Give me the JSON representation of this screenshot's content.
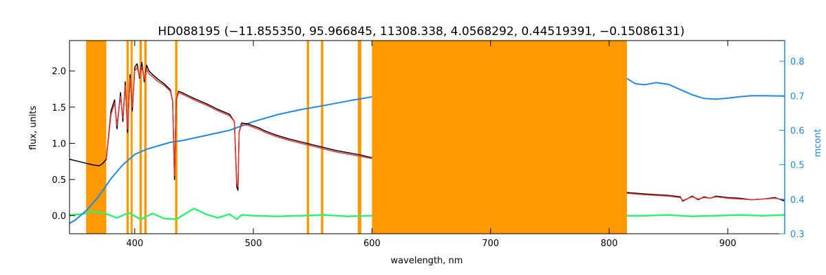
{
  "chart_data": {
    "type": "line",
    "title": "HD088195   (−11.855350, 95.966845, 11308.338, 4.0568292, 0.44519391, −0.15086131)",
    "xlabel": "wavelength, nm",
    "ylabel": "flux, units",
    "ylabel_right": "mcont",
    "xlim": [
      345,
      948
    ],
    "ylim": [
      -0.25,
      2.42
    ],
    "ylim_right": [
      0.3,
      0.86
    ],
    "x_ticks": [
      400,
      500,
      600,
      700,
      800,
      900
    ],
    "y_ticks": [
      0.0,
      0.5,
      1.0,
      1.5,
      2.0
    ],
    "y_tick_labels": [
      "0.0",
      "0.5",
      "1.0",
      "1.5",
      "2.0"
    ],
    "y_ticks_right": [
      0.3,
      0.4,
      0.5,
      0.6,
      0.7,
      0.8
    ],
    "y_tick_labels_right": [
      "0.3",
      "0.4",
      "0.5",
      "0.6",
      "0.7",
      "0.8"
    ],
    "masked_regions": [
      [
        359,
        376
      ],
      [
        393,
        395
      ],
      [
        396.5,
        398
      ],
      [
        404,
        406
      ],
      [
        408,
        410
      ],
      [
        434,
        436
      ],
      [
        545,
        547
      ],
      [
        557,
        559
      ],
      [
        588,
        591
      ],
      [
        600,
        815
      ]
    ],
    "colors": {
      "observed": "#000000",
      "model": "#e53935",
      "residual": "#33ee77",
      "continuum": "#1e88e5",
      "mask": "#ff9900",
      "fill": "#ffee00"
    },
    "series": [
      {
        "role": "observed",
        "x": [
          345,
          355,
          360,
          365,
          370,
          373,
          376,
          380,
          383,
          385,
          388,
          390,
          392,
          394,
          396,
          398,
          400,
          402,
          404,
          406,
          408,
          410,
          412,
          415,
          420,
          425,
          430,
          432,
          433.5,
          435,
          437,
          440,
          445,
          450,
          460,
          470,
          480,
          484,
          486,
          487,
          488,
          490,
          495,
          500,
          505,
          510,
          520,
          530,
          540,
          550,
          560,
          570,
          580,
          590,
          600
        ],
        "y": [
          0.78,
          0.74,
          0.72,
          0.7,
          0.69,
          0.72,
          0.78,
          1.45,
          1.6,
          1.2,
          1.7,
          1.3,
          1.85,
          1.15,
          1.95,
          1.45,
          2.05,
          2.1,
          1.9,
          2.12,
          1.85,
          2.08,
          2.0,
          1.95,
          1.88,
          1.82,
          1.74,
          1.58,
          0.5,
          1.6,
          1.72,
          1.7,
          1.66,
          1.62,
          1.55,
          1.47,
          1.4,
          1.3,
          0.4,
          0.35,
          1.15,
          1.28,
          1.27,
          1.24,
          1.21,
          1.17,
          1.11,
          1.06,
          1.02,
          0.98,
          0.94,
          0.9,
          0.87,
          0.84,
          0.8
        ]
      },
      {
        "role": "observed",
        "x": [
          815,
          830,
          850,
          860,
          862,
          870,
          875,
          880,
          885,
          890,
          900,
          910,
          920,
          930,
          940,
          948
        ],
        "y": [
          0.32,
          0.3,
          0.28,
          0.26,
          0.2,
          0.27,
          0.22,
          0.26,
          0.24,
          0.27,
          0.25,
          0.24,
          0.22,
          0.23,
          0.25,
          0.2
        ]
      },
      {
        "role": "model",
        "x": [
          376,
          380,
          383,
          385,
          388,
          390,
          392,
          394,
          396,
          398,
          400,
          402,
          404,
          406,
          408,
          410,
          412,
          415,
          420,
          425,
          430,
          432,
          433.5,
          435,
          437,
          440,
          445,
          450,
          460,
          470,
          480,
          484,
          486,
          487,
          488,
          490,
          495,
          500,
          505,
          510,
          520,
          530,
          540,
          550,
          560,
          570,
          580,
          590,
          600
        ],
        "y": [
          0.78,
          1.4,
          1.56,
          1.25,
          1.65,
          1.35,
          1.8,
          1.2,
          1.9,
          1.5,
          2.0,
          2.05,
          1.92,
          2.06,
          1.88,
          2.02,
          1.96,
          1.92,
          1.85,
          1.8,
          1.72,
          1.58,
          0.55,
          1.6,
          1.7,
          1.68,
          1.64,
          1.6,
          1.53,
          1.45,
          1.38,
          1.3,
          0.45,
          0.4,
          1.15,
          1.26,
          1.25,
          1.22,
          1.19,
          1.15,
          1.09,
          1.04,
          1.0,
          0.96,
          0.92,
          0.88,
          0.85,
          0.82,
          0.79
        ]
      },
      {
        "role": "model",
        "x": [
          815,
          830,
          850,
          860,
          862,
          870,
          875,
          880,
          885,
          890,
          900,
          910,
          920,
          930,
          940,
          948
        ],
        "y": [
          0.31,
          0.29,
          0.27,
          0.25,
          0.21,
          0.26,
          0.23,
          0.25,
          0.24,
          0.26,
          0.24,
          0.23,
          0.22,
          0.23,
          0.24,
          0.22
        ]
      },
      {
        "role": "residual",
        "x": [
          345,
          355,
          365,
          375,
          385,
          395,
          405,
          415,
          425,
          435,
          445,
          450,
          460,
          470,
          480,
          486,
          490,
          500,
          520,
          540,
          560,
          580,
          600
        ],
        "y": [
          0.01,
          0.02,
          0.06,
          0.03,
          -0.03,
          0.04,
          -0.05,
          0.03,
          -0.04,
          -0.05,
          0.05,
          0.1,
          0.02,
          -0.03,
          0.02,
          -0.05,
          0.01,
          0.0,
          -0.01,
          0.0,
          0.01,
          -0.01,
          0.0
        ]
      },
      {
        "role": "residual",
        "x": [
          815,
          830,
          850,
          870,
          890,
          910,
          930,
          948
        ],
        "y": [
          0.0,
          0.0,
          0.01,
          -0.01,
          0.0,
          0.01,
          0.0,
          0.01
        ]
      },
      {
        "role": "continuum",
        "axis": "right",
        "x": [
          345,
          350,
          360,
          370,
          380,
          390,
          400,
          410,
          420,
          430,
          440,
          460,
          480,
          500,
          520,
          540,
          560,
          580,
          600
        ],
        "y": [
          0.33,
          0.34,
          0.37,
          0.41,
          0.46,
          0.5,
          0.53,
          0.545,
          0.555,
          0.565,
          0.57,
          0.585,
          0.6,
          0.625,
          0.645,
          0.66,
          0.672,
          0.685,
          0.697
        ]
      },
      {
        "role": "continuum",
        "axis": "right",
        "x": [
          815,
          822,
          830,
          840,
          850,
          860,
          870,
          880,
          890,
          900,
          910,
          920,
          930,
          948
        ],
        "y": [
          0.75,
          0.735,
          0.732,
          0.738,
          0.733,
          0.718,
          0.703,
          0.692,
          0.69,
          0.693,
          0.697,
          0.7,
          0.7,
          0.699
        ]
      }
    ]
  }
}
